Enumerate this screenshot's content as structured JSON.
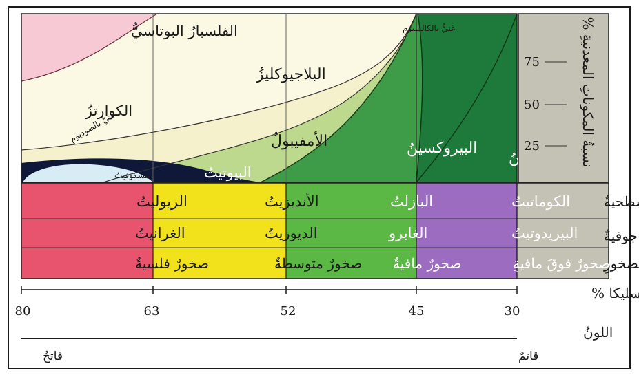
{
  "panel": {
    "title": "نسبةُ المكوناتِ المعدنيةِ %",
    "ticks": [
      "75",
      "50",
      "25"
    ]
  },
  "minerals": {
    "k_feldspar": "الفلسبارُ البوتاسيُّ",
    "quartz": "الكوارتزُ",
    "sodium_rich": "غنيٌّ بالصوديومِ",
    "plagioclase": "البلاجيوكليزُ",
    "calcium_rich": "غنيٌّ بالكالسيومِ",
    "amphibole": "الأمفيبولُ",
    "pyroxene": "البيروكسينُ",
    "olivine": "الأوليفينُ",
    "muscovite": "المسكوفيتُ",
    "biotite": "البيوتيتُ"
  },
  "rows": [
    {
      "label": "صخورٌ سطحيةٌ",
      "cells": [
        "الريوليتُ",
        "الأنديزيتُ",
        "البازلتُ",
        "الكوماتيتُ"
      ]
    },
    {
      "label": "صخورٌ جوفيةٌ",
      "cells": [
        "الغرانيتُ",
        "الديوريتُ",
        "الغابرو",
        "البيريدوتيتُ"
      ]
    },
    {
      "label": "تصنيفُ الصخورِ",
      "cells": [
        "صخورٌ فلسيةٌ",
        "صخورٌ متوسطةٌ",
        "صخورٌ مافيةٌ",
        "صخورٌ فوقَ مافيةٍ"
      ]
    }
  ],
  "silica": {
    "label": "السليكا %",
    "ticks": [
      "80",
      "63",
      "52",
      "45",
      "30"
    ]
  },
  "color_scale": {
    "label": "اللونُ",
    "light": "فاتحٌ",
    "dark": "قاتمٌ"
  },
  "colors": {
    "felsic": "#e8546e",
    "intermediate": "#f2e21c",
    "mafic": "#5cb845",
    "ultramafic": "#9c6cc0",
    "panel_gray": "#c4c1b5",
    "k_feldspar": "#f6c9d4",
    "quartz": "#fbf8e4",
    "plagioclase": "#f4f1cc",
    "amphibole": "#bcd98e",
    "pyroxene": "#3e9b47",
    "olivine": "#1e7a3a",
    "muscovite": "#d8ecf6",
    "biotite": "#10183a"
  }
}
